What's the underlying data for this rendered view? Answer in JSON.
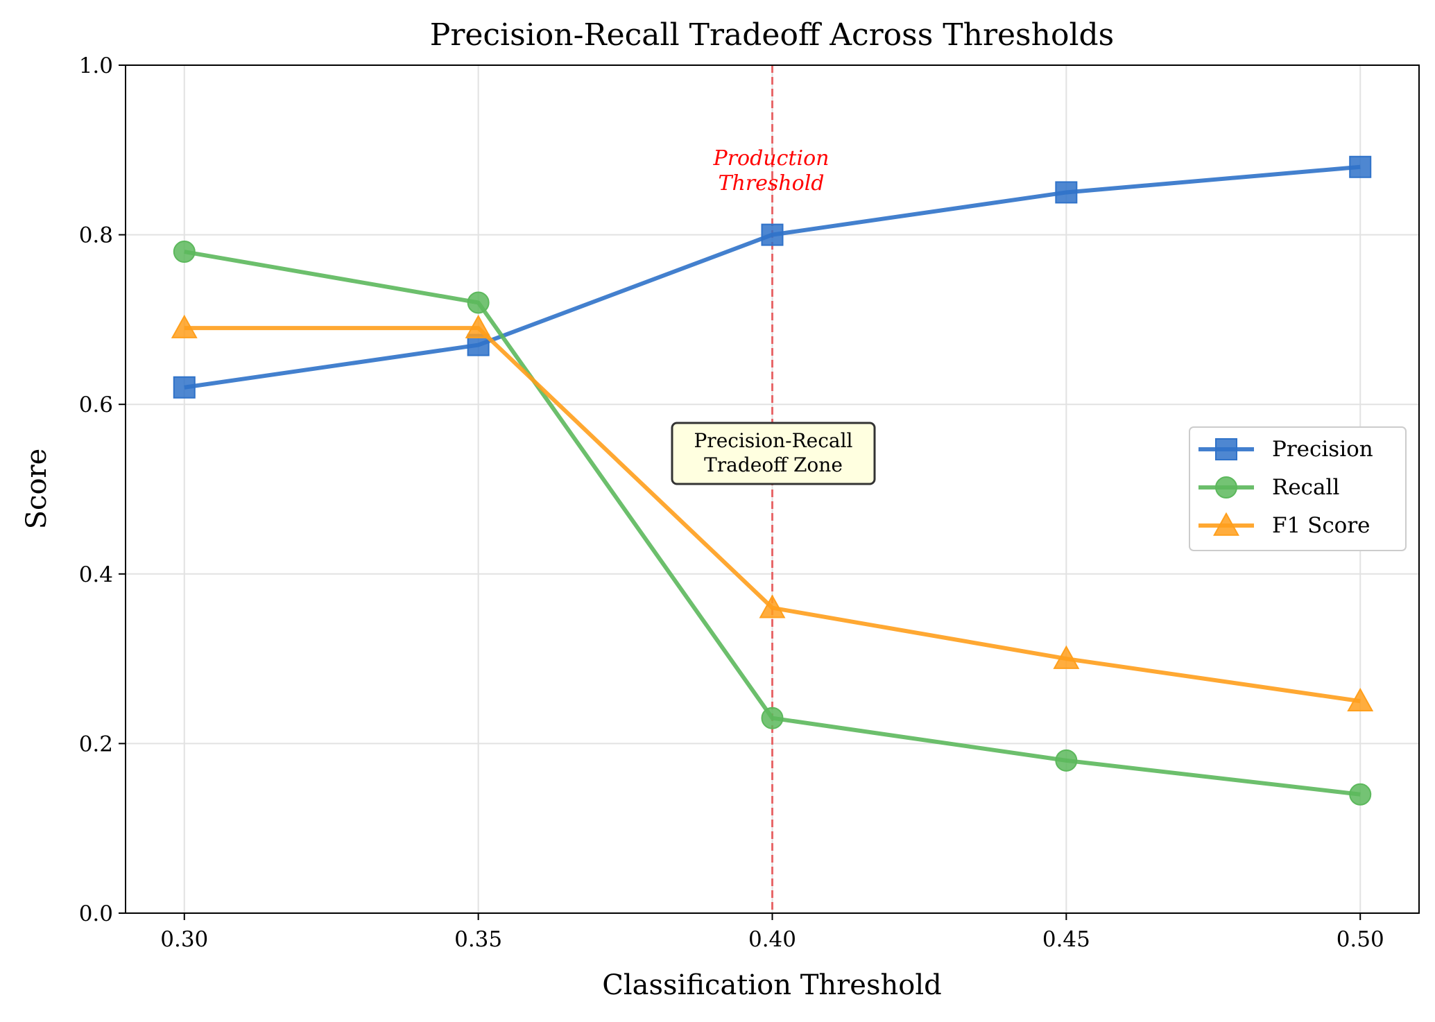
{
  "chart_data": {
    "type": "line",
    "title": "Precision-Recall Tradeoff Across Thresholds",
    "xlabel": "Classification Threshold",
    "ylabel": "Score",
    "x": [
      0.3,
      0.35,
      0.4,
      0.45,
      0.5
    ],
    "x_ticks": [
      "0.30",
      "0.35",
      "0.40",
      "0.45",
      "0.50"
    ],
    "y_ticks": [
      "0.0",
      "0.2",
      "0.4",
      "0.6",
      "0.8",
      "1.0"
    ],
    "xlim": [
      0.29,
      0.51
    ],
    "ylim": [
      0.0,
      1.0
    ],
    "grid": true,
    "legend_position": "center-right",
    "series": [
      {
        "name": "Precision",
        "values": [
          0.62,
          0.67,
          0.8,
          0.85,
          0.88
        ],
        "color": "#2f72c9",
        "marker": "square"
      },
      {
        "name": "Recall",
        "values": [
          0.78,
          0.72,
          0.23,
          0.18,
          0.14
        ],
        "color": "#5cb85c",
        "marker": "circle"
      },
      {
        "name": "F1 Score",
        "values": [
          0.69,
          0.69,
          0.36,
          0.3,
          0.25
        ],
        "color": "#ff9f1c",
        "marker": "triangle"
      }
    ],
    "reference_line": {
      "x": 0.4,
      "color": "#e8484a",
      "style": "dashed"
    },
    "annotations": {
      "production_line1": "Production",
      "production_line2": "Threshold",
      "zone_line1": "Precision-Recall",
      "zone_line2": "Tradeoff Zone"
    }
  }
}
